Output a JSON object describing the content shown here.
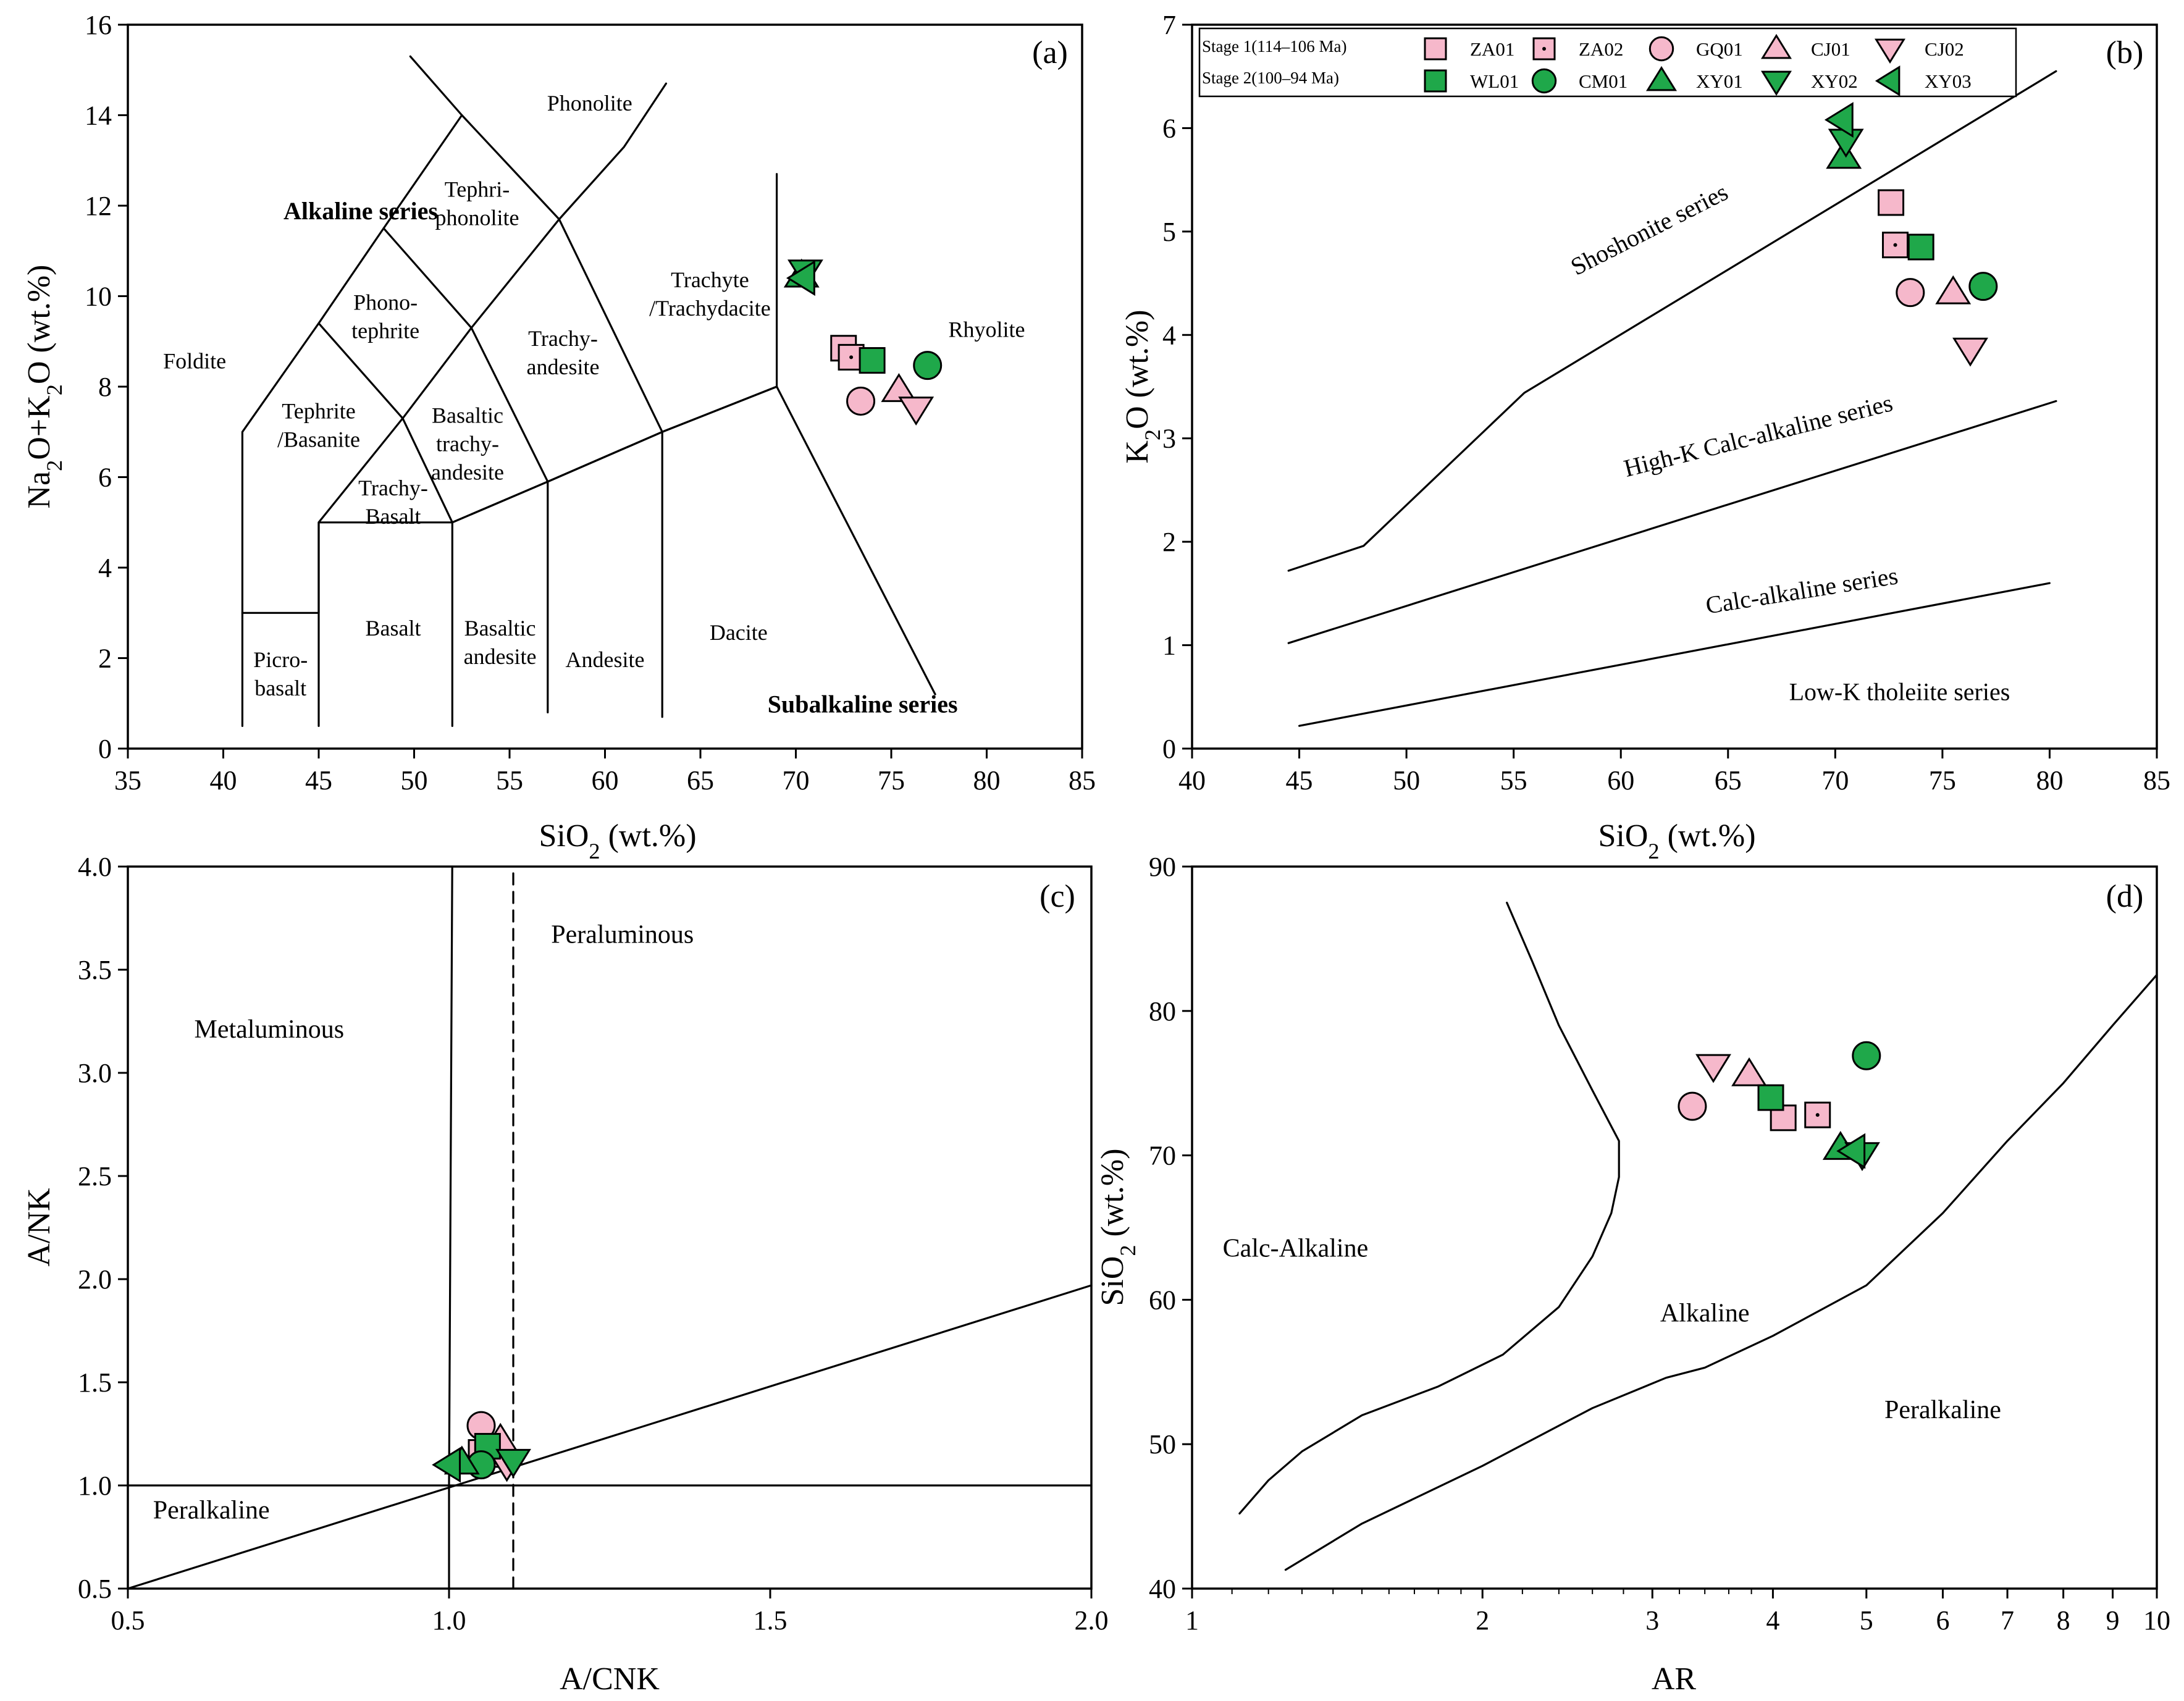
{
  "colors": {
    "stage1_fill": "#F6B8CB",
    "stage2_fill": "#1FA84A",
    "marker_stroke": "#000000",
    "line": "#000000"
  },
  "legend": {
    "stage1_label": "Stage 1(114–106 Ma)",
    "stage2_label": "Stage 2(100–94 Ma)",
    "stage1_samples": [
      {
        "name": "ZA01",
        "marker": "square"
      },
      {
        "name": "ZA02",
        "marker": "square-dot"
      },
      {
        "name": "GQ01",
        "marker": "circle"
      },
      {
        "name": "CJ01",
        "marker": "triangle-up"
      },
      {
        "name": "CJ02",
        "marker": "triangle-down"
      }
    ],
    "stage2_samples": [
      {
        "name": "WL01",
        "marker": "square"
      },
      {
        "name": "CM01",
        "marker": "circle"
      },
      {
        "name": "XY01",
        "marker": "triangle-up"
      },
      {
        "name": "XY02",
        "marker": "triangle-down"
      },
      {
        "name": "XY03",
        "marker": "triangle-left"
      }
    ]
  },
  "chart_data": [
    {
      "id": "a",
      "type": "scatter",
      "panel_tag": "(a)",
      "xlabel": "SiO₂ (wt.%)",
      "ylabel": "Na₂O+K₂O (wt.%)",
      "xlim": [
        35,
        85
      ],
      "ylim": [
        0,
        16
      ],
      "xticks": [
        35,
        40,
        45,
        50,
        55,
        60,
        65,
        70,
        75,
        80,
        85
      ],
      "yticks": [
        0,
        2,
        4,
        6,
        8,
        10,
        12,
        14,
        16
      ],
      "region_labels": [
        {
          "lines": [
            "Foldite"
          ],
          "x": 38.5,
          "y": 8.4
        },
        {
          "lines": [
            "Phonolite"
          ],
          "x": 59.2,
          "y": 14.1
        },
        {
          "lines": [
            "Tephri-",
            "phonolite"
          ],
          "x": 53.3,
          "y": 12.2
        },
        {
          "lines": [
            "Phono-",
            "tephrite"
          ],
          "x": 48.5,
          "y": 9.7
        },
        {
          "lines": [
            "Tephrite",
            "/Basanite"
          ],
          "x": 45.0,
          "y": 7.3
        },
        {
          "lines": [
            "Basaltic",
            "trachy-",
            "andesite"
          ],
          "x": 52.8,
          "y": 7.2
        },
        {
          "lines": [
            "Trachy-",
            "Basalt"
          ],
          "x": 48.9,
          "y": 5.6
        },
        {
          "lines": [
            "Trachy-",
            "andesite"
          ],
          "x": 57.8,
          "y": 8.9
        },
        {
          "lines": [
            "Trachyte",
            "/Trachydacite"
          ],
          "x": 65.5,
          "y": 10.2
        },
        {
          "lines": [
            "Rhyolite"
          ],
          "x": 80.0,
          "y": 9.1
        },
        {
          "lines": [
            "Picro-",
            "basalt"
          ],
          "x": 43.0,
          "y": 1.8
        },
        {
          "lines": [
            "Basalt"
          ],
          "x": 48.9,
          "y": 2.5
        },
        {
          "lines": [
            "Basaltic",
            "andesite"
          ],
          "x": 54.5,
          "y": 2.5
        },
        {
          "lines": [
            "Andesite"
          ],
          "x": 60.0,
          "y": 1.8
        },
        {
          "lines": [
            "Dacite"
          ],
          "x": 67.0,
          "y": 2.4
        }
      ],
      "series_labels": [
        {
          "text": "Alkaline series",
          "x": 47.2,
          "y": 11.7
        },
        {
          "text": "Subalkaline series",
          "x": 73.5,
          "y": 0.8
        }
      ],
      "boundaries": [
        [
          [
            41,
            0.5
          ],
          [
            41,
            7
          ],
          [
            45,
            9.4
          ],
          [
            48.4,
            11.5
          ],
          [
            52.5,
            14
          ],
          [
            57.6,
            11.7
          ],
          [
            63,
            7
          ],
          [
            69,
            8
          ],
          [
            77.3,
            1.2
          ]
        ],
        [
          [
            41,
            3
          ],
          [
            45,
            3
          ],
          [
            45,
            5
          ],
          [
            49.4,
            7.3
          ],
          [
            53,
            9.3
          ],
          [
            57.6,
            11.7
          ]
        ],
        [
          [
            45,
            0.5
          ],
          [
            45,
            5
          ],
          [
            52,
            5
          ],
          [
            57,
            5.9
          ],
          [
            63,
            7
          ],
          [
            69,
            8
          ]
        ],
        [
          [
            52,
            0.5
          ],
          [
            52,
            5
          ],
          [
            57,
            5.9
          ],
          [
            63,
            7
          ]
        ],
        [
          [
            57,
            0.8
          ],
          [
            57,
            5.9
          ]
        ],
        [
          [
            63,
            0.7
          ],
          [
            63,
            7
          ]
        ],
        [
          [
            69,
            8
          ],
          [
            69,
            12.7
          ]
        ],
        [
          [
            52,
            5
          ],
          [
            49.4,
            7.3
          ],
          [
            45,
            9.4
          ]
        ],
        [
          [
            57,
            5.9
          ],
          [
            53,
            9.3
          ],
          [
            48.4,
            11.5
          ]
        ],
        [
          [
            57.6,
            11.7
          ],
          [
            61,
            13.3
          ],
          [
            63.2,
            14.7
          ]
        ],
        [
          [
            52.5,
            14
          ],
          [
            49.8,
            15.3
          ]
        ]
      ],
      "points": [
        {
          "sample": "ZA01",
          "x": 72.5,
          "y": 8.85
        },
        {
          "sample": "ZA02",
          "x": 72.9,
          "y": 8.65
        },
        {
          "sample": "GQ01",
          "x": 73.4,
          "y": 7.68
        },
        {
          "sample": "CJ01",
          "x": 75.4,
          "y": 7.92
        },
        {
          "sample": "CJ02",
          "x": 76.3,
          "y": 7.52
        },
        {
          "sample": "WL01",
          "x": 74.0,
          "y": 8.58
        },
        {
          "sample": "CM01",
          "x": 76.9,
          "y": 8.47
        },
        {
          "sample": "XY01",
          "x": 70.3,
          "y": 10.45
        },
        {
          "sample": "XY02",
          "x": 70.5,
          "y": 10.55
        },
        {
          "sample": "XY03",
          "x": 70.4,
          "y": 10.4
        }
      ]
    },
    {
      "id": "b",
      "type": "scatter",
      "panel_tag": "(b)",
      "xlabel": "SiO₂ (wt.%)",
      "ylabel": "K₂O (wt.%)",
      "xlim": [
        40,
        85
      ],
      "ylim": [
        0,
        7
      ],
      "xticks": [
        40,
        45,
        50,
        55,
        60,
        65,
        70,
        75,
        80,
        85
      ],
      "yticks": [
        0,
        1,
        2,
        3,
        4,
        5,
        6,
        7
      ],
      "region_labels": [
        {
          "text": "Shoshonite series",
          "x": 61.5,
          "y": 4.95,
          "rotate": -27
        },
        {
          "text": "High-K Calc-alkaline series",
          "x": 66.5,
          "y": 2.95,
          "rotate": -14
        },
        {
          "text": "Calc-alkaline series",
          "x": 68.5,
          "y": 1.45,
          "rotate": -9
        },
        {
          "text": "Low-K tholeiite series",
          "x": 73.0,
          "y": 0.47,
          "rotate": 0
        }
      ],
      "boundaries": [
        [
          [
            44.5,
            1.72
          ],
          [
            48,
            1.96
          ],
          [
            55.5,
            3.44
          ],
          [
            80.3,
            6.55
          ]
        ],
        [
          [
            44.5,
            1.02
          ],
          [
            80.3,
            3.36
          ]
        ],
        [
          [
            45,
            0.22
          ],
          [
            80,
            1.6
          ]
        ]
      ],
      "points": [
        {
          "sample": "ZA01",
          "x": 72.6,
          "y": 5.28
        },
        {
          "sample": "ZA02",
          "x": 72.8,
          "y": 4.87
        },
        {
          "sample": "GQ01",
          "x": 73.5,
          "y": 4.41
        },
        {
          "sample": "CJ01",
          "x": 75.5,
          "y": 4.41
        },
        {
          "sample": "CJ02",
          "x": 76.3,
          "y": 3.86
        },
        {
          "sample": "WL01",
          "x": 74.0,
          "y": 4.85
        },
        {
          "sample": "CM01",
          "x": 76.9,
          "y": 4.47
        },
        {
          "sample": "XY01",
          "x": 70.4,
          "y": 5.72
        },
        {
          "sample": "XY02",
          "x": 70.5,
          "y": 5.88
        },
        {
          "sample": "XY03",
          "x": 70.3,
          "y": 6.08
        }
      ]
    },
    {
      "id": "c",
      "type": "scatter",
      "panel_tag": "(c)",
      "xlabel": "A/CNK",
      "ylabel": "A/NK",
      "xlim": [
        0.5,
        2.0
      ],
      "ylim": [
        0.5,
        4.0
      ],
      "xticks": [
        0.5,
        1.0,
        1.5,
        2.0
      ],
      "xtick_labels": [
        "0.5",
        "1.0",
        "1.5",
        "2.0"
      ],
      "yticks": [
        0.5,
        1.0,
        1.5,
        2.0,
        2.5,
        3.0,
        3.5,
        4.0
      ],
      "ytick_labels": [
        "0.5",
        "1.0",
        "1.5",
        "2.0",
        "2.5",
        "3.0",
        "3.5",
        "4.0"
      ],
      "region_labels": [
        {
          "text": "Metaluminous",
          "x": 0.72,
          "y": 3.17
        },
        {
          "text": "Peraluminous",
          "x": 1.27,
          "y": 3.63
        },
        {
          "text": "Peralkaline",
          "x": 0.63,
          "y": 0.84
        }
      ],
      "boundaries": [
        [
          [
            0.5,
            0.5
          ],
          [
            2.0,
            1.97
          ]
        ],
        [
          [
            0.5,
            1.0
          ],
          [
            2.0,
            1.0
          ]
        ],
        [
          [
            1.0,
            0.5
          ],
          [
            1.0,
            1.0
          ],
          [
            1.005,
            4.0
          ]
        ]
      ],
      "dashed_boundaries": [
        [
          [
            1.1,
            0.5
          ],
          [
            1.1,
            4.0
          ]
        ]
      ],
      "points": [
        {
          "sample": "ZA01",
          "x": 1.05,
          "y": 1.16
        },
        {
          "sample": "ZA02",
          "x": 1.06,
          "y": 1.15
        },
        {
          "sample": "GQ01",
          "x": 1.05,
          "y": 1.29
        },
        {
          "sample": "CJ01",
          "x": 1.08,
          "y": 1.22
        },
        {
          "sample": "CJ02",
          "x": 1.09,
          "y": 1.1
        },
        {
          "sample": "WL01",
          "x": 1.06,
          "y": 1.19
        },
        {
          "sample": "CM01",
          "x": 1.05,
          "y": 1.1
        },
        {
          "sample": "XY01",
          "x": 1.02,
          "y": 1.11
        },
        {
          "sample": "XY02",
          "x": 1.1,
          "y": 1.12
        },
        {
          "sample": "XY03",
          "x": 1.0,
          "y": 1.1
        }
      ]
    },
    {
      "id": "d",
      "type": "scatter",
      "panel_tag": "(d)",
      "xlabel": "AR",
      "ylabel": "SiO₂ (wt.%)",
      "xscale": "log",
      "xlim": [
        1,
        10
      ],
      "ylim": [
        40,
        90
      ],
      "xticks": [
        1,
        2,
        3,
        4,
        5,
        6,
        7,
        8,
        9,
        10
      ],
      "yticks": [
        40,
        50,
        60,
        70,
        80,
        90
      ],
      "region_labels": [
        {
          "text": "Calc-Alkaline",
          "x": 1.28,
          "y": 63
        },
        {
          "text": "Alkaline",
          "x": 3.4,
          "y": 58.5
        },
        {
          "text": "Peralkaline",
          "x": 6.0,
          "y": 51.8
        }
      ],
      "boundaries": [
        [
          [
            1.12,
            45.2
          ],
          [
            1.2,
            47.5
          ],
          [
            1.3,
            49.5
          ],
          [
            1.5,
            52
          ],
          [
            1.8,
            54
          ],
          [
            2.1,
            56.2
          ],
          [
            2.4,
            59.5
          ],
          [
            2.6,
            63
          ],
          [
            2.72,
            66
          ],
          [
            2.77,
            68.5
          ],
          [
            2.77,
            71
          ],
          [
            2.6,
            74.5
          ],
          [
            2.4,
            79
          ],
          [
            2.25,
            83.5
          ],
          [
            2.12,
            87.5
          ]
        ],
        [
          [
            1.25,
            41.3
          ],
          [
            1.5,
            44.5
          ],
          [
            2.0,
            48.5
          ],
          [
            2.6,
            52.5
          ],
          [
            3.1,
            54.6
          ],
          [
            3.4,
            55.3
          ],
          [
            4.0,
            57.5
          ],
          [
            5.0,
            61
          ],
          [
            6.0,
            66
          ],
          [
            7.0,
            71
          ],
          [
            8.0,
            75
          ],
          [
            9.0,
            79
          ],
          [
            10.0,
            82.5
          ]
        ]
      ],
      "points": [
        {
          "sample": "ZA01",
          "x": 4.1,
          "y": 72.6
        },
        {
          "sample": "ZA02",
          "x": 4.45,
          "y": 72.8
        },
        {
          "sample": "GQ01",
          "x": 3.3,
          "y": 73.4
        },
        {
          "sample": "CJ01",
          "x": 3.78,
          "y": 75.6
        },
        {
          "sample": "CJ02",
          "x": 3.47,
          "y": 76.2
        },
        {
          "sample": "WL01",
          "x": 3.98,
          "y": 74.0
        },
        {
          "sample": "CM01",
          "x": 5.0,
          "y": 76.9
        },
        {
          "sample": "XY01",
          "x": 4.7,
          "y": 70.5
        },
        {
          "sample": "XY02",
          "x": 4.95,
          "y": 70.1
        },
        {
          "sample": "XY03",
          "x": 4.85,
          "y": 70.3
        }
      ]
    }
  ]
}
